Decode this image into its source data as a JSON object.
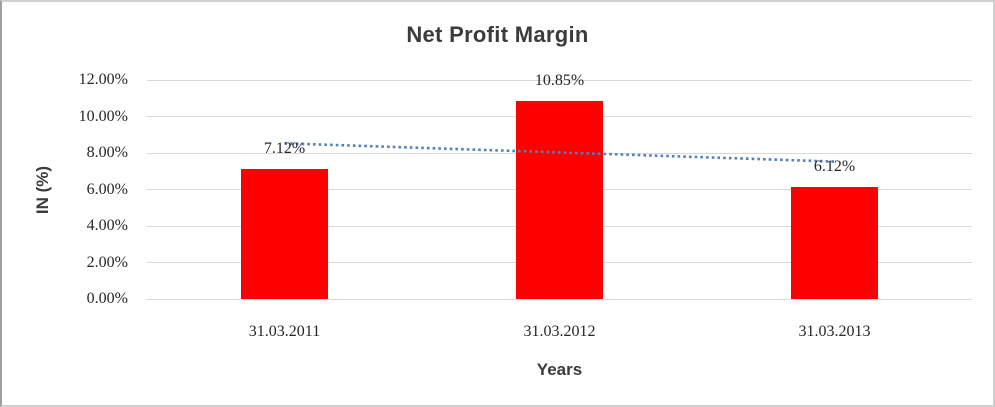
{
  "frame": {
    "background": "#ffffff",
    "border_color": "#cfcfcf"
  },
  "chart_data": {
    "type": "bar",
    "title": "Net Profit Margin",
    "xlabel": "Years",
    "ylabel": "IN (%)",
    "categories": [
      "31.03.2011",
      "31.03.2012",
      "31.03.2013"
    ],
    "values": [
      7.12,
      10.85,
      6.12
    ],
    "data_labels": [
      "7.12%",
      "10.85%",
      "6.12%"
    ],
    "ylim": [
      0,
      12
    ],
    "ytick_values": [
      0,
      2,
      4,
      6,
      8,
      10,
      12
    ],
    "ytick_labels": [
      "0.00%",
      "2.00%",
      "4.00%",
      "6.00%",
      "8.00%",
      "10.00%",
      "12.00%"
    ],
    "grid": true,
    "legend": "none",
    "bar_color": "#ff0000",
    "gridline_color": "#d9d9d9",
    "title_color": "#3b3b3b",
    "tick_text_color": "#262626",
    "trendline": {
      "type": "linear",
      "style": "dotted",
      "color": "#4f81bd",
      "start_value": 8.53,
      "end_value": 7.53
    }
  }
}
